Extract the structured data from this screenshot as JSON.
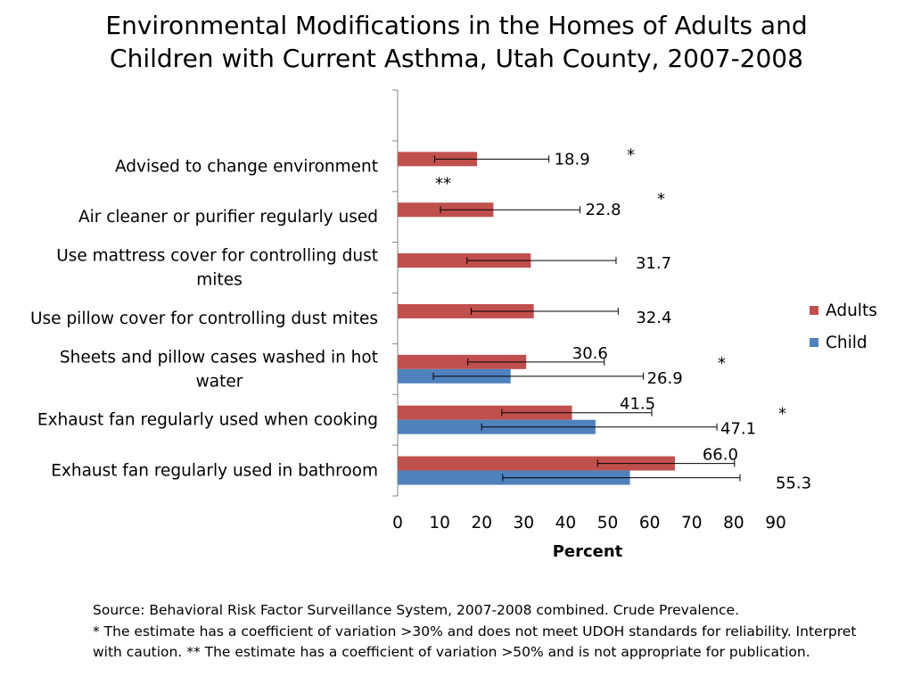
{
  "title_lines": [
    "Environmental Modifications in the Homes of Adults and",
    "Children with Current Asthma, Utah County, 2007-2008"
  ],
  "chart_data": {
    "type": "bar",
    "orientation": "horizontal",
    "title": "Environmental Modifications in the Homes of Adults and Children with Current Asthma, Utah County, 2007-2008",
    "xlabel": "Percent",
    "ylabel": "",
    "xlim": [
      0,
      90
    ],
    "xticks": [
      0,
      10,
      20,
      30,
      40,
      50,
      60,
      70,
      80,
      90
    ],
    "legend_position": "right",
    "categories": [
      "Advised to change environment",
      "Air cleaner or purifier regularly used",
      "Use mattress cover for controlling dust mites",
      "Use pillow cover for controlling dust mites",
      "Sheets and pillow cases washed in hot water",
      "Exhaust fan regularly used when cooking",
      "Exhaust fan regularly used in bathroom"
    ],
    "category_label_lines": [
      [
        "Advised to change environment"
      ],
      [
        "Air cleaner or purifier regularly used"
      ],
      [
        "Use mattress cover for controlling dust",
        "mites"
      ],
      [
        "Use pillow cover for controlling dust mites"
      ],
      [
        "Sheets and pillow cases washed in hot",
        "water"
      ],
      [
        "Exhaust fan regularly used when cooking"
      ],
      [
        "Exhaust fan regularly used in bathroom"
      ]
    ],
    "series": [
      {
        "name": "Adults",
        "color": "#c0504d",
        "values": [
          18.9,
          22.8,
          31.7,
          32.4,
          30.6,
          41.5,
          66.0
        ],
        "labels": [
          "18.9",
          "22.8",
          "31.7",
          "32.4",
          "30.6",
          "41.5",
          "66.0"
        ],
        "error_low": [
          8.8,
          10.2,
          16.5,
          17.5,
          16.7,
          24.8,
          47.6
        ],
        "error_high": [
          36.0,
          43.4,
          52.0,
          52.5,
          49.2,
          60.5,
          80.2
        ],
        "flags": [
          "*",
          "*",
          "",
          "",
          "",
          "",
          ""
        ]
      },
      {
        "name": "Child",
        "color": "#4f81bd",
        "values": [
          null,
          null,
          null,
          null,
          26.9,
          47.1,
          55.3
        ],
        "labels": [
          "**",
          "",
          "",
          "",
          "26.9",
          "47.1",
          "55.3"
        ],
        "error_low": [
          null,
          null,
          null,
          null,
          8.5,
          20.0,
          25.0
        ],
        "error_high": [
          null,
          null,
          null,
          null,
          58.5,
          76.0,
          81.5
        ],
        "flags": [
          "",
          "",
          "",
          "",
          "*",
          "*",
          ""
        ]
      }
    ]
  },
  "footnotes": [
    "Source: Behavioral Risk Factor Surveillance System, 2007-2008 combined. Crude Prevalence.",
    "* The estimate has a coefficient of variation >30% and does not meet UDOH standards for reliability. Interpret",
    "with caution. ** The estimate has a coefficient of variation >50% and is not appropriate for publication."
  ]
}
